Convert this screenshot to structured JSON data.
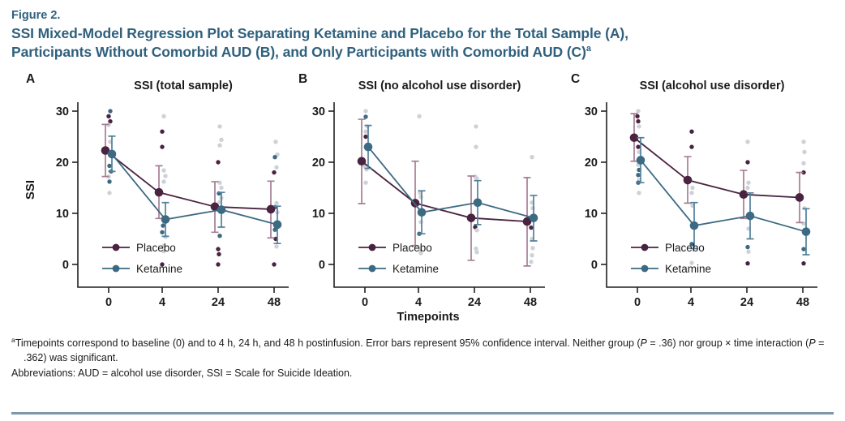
{
  "header": {
    "figure_label": "Figure 2.",
    "title_lines": [
      [
        {
          "t": "SSI Mixed-Model Regression Plot Separating Ketamine and Placebo for the Total Sample (A),"
        }
      ],
      [
        {
          "t": "Participants Without Comorbid AUD (B), and Only Participants with Comorbid AUD (C)"
        },
        {
          "t": "a",
          "sup": true
        }
      ]
    ]
  },
  "colors": {
    "title": "#2f607d",
    "placebo": "#4a2340",
    "placebo_ci": "#a57e95",
    "ketamine": "#3c6a82",
    "ketamine_ci": "#53809a",
    "scatter_gray": "#cdd2d8",
    "axis": "#231f20",
    "text": "#1a1a1a",
    "rule": "#7e97a9"
  },
  "xaxis_label": "Timepoints",
  "chart_data": [
    {
      "type": "line",
      "panel_label": "A",
      "title": "SSI (total sample)",
      "ylabel": "SSI",
      "xlabel": "",
      "x_categories": [
        "0",
        "4",
        "24",
        "48"
      ],
      "y_ticks": [
        0,
        10,
        20,
        30
      ],
      "ylim": [
        -4.4,
        31.7
      ],
      "legend_position": "lower-left",
      "series": [
        {
          "name": "Placebo",
          "color_key": "placebo",
          "ci_color_key": "placebo_ci",
          "means": [
            22.3,
            14.1,
            11.3,
            10.8
          ],
          "ci_low": [
            17.2,
            9.0,
            6.3,
            5.2
          ],
          "ci_high": [
            27.4,
            19.3,
            16.2,
            16.3
          ]
        },
        {
          "name": "Ketamine",
          "color_key": "ketamine",
          "ci_color_key": "ketamine_ci",
          "means": [
            21.6,
            8.8,
            10.7,
            7.8
          ],
          "ci_low": [
            18.2,
            5.5,
            7.3,
            4.1
          ],
          "ci_high": [
            25.1,
            12.1,
            14.1,
            11.4
          ]
        }
      ],
      "raw_points": [
        [
          0,
          30,
          "k",
          2
        ],
        [
          0,
          29,
          "p",
          0
        ],
        [
          0,
          28,
          "p",
          2
        ],
        [
          0,
          27.3,
          "g",
          0
        ],
        [
          0,
          24,
          "g",
          2
        ],
        [
          0,
          19.3,
          "k",
          1
        ],
        [
          0,
          18.2,
          "k",
          3
        ],
        [
          0,
          17.2,
          "g",
          0
        ],
        [
          0,
          16.2,
          "k",
          1
        ],
        [
          0,
          14,
          "g",
          1
        ],
        [
          1,
          29,
          "g",
          2
        ],
        [
          1,
          26,
          "p",
          0
        ],
        [
          1,
          23,
          "p",
          0
        ],
        [
          1,
          18.4,
          "g",
          2
        ],
        [
          1,
          17.3,
          "g",
          4
        ],
        [
          1,
          16.2,
          "g",
          2
        ],
        [
          1,
          8.6,
          "g",
          3
        ],
        [
          1,
          7.6,
          "k",
          1
        ],
        [
          1,
          6.3,
          "k",
          0
        ],
        [
          1,
          5.4,
          "g",
          4
        ],
        [
          1,
          3.6,
          "g",
          2
        ],
        [
          1,
          2.6,
          "g",
          2
        ],
        [
          1,
          0,
          "p",
          0
        ],
        [
          2,
          27,
          "g",
          2
        ],
        [
          2,
          24.4,
          "g",
          4
        ],
        [
          2,
          23.3,
          "g",
          2
        ],
        [
          2,
          20,
          "p",
          0
        ],
        [
          2,
          16,
          "g",
          2
        ],
        [
          2,
          15,
          "g",
          4
        ],
        [
          2,
          13.9,
          "k",
          1
        ],
        [
          2,
          13,
          "g",
          4
        ],
        [
          2,
          12.2,
          "g",
          2
        ],
        [
          2,
          5.6,
          "k",
          2
        ],
        [
          2,
          3,
          "p",
          0
        ],
        [
          2,
          2,
          "p",
          1
        ],
        [
          2,
          0,
          "p",
          0
        ],
        [
          3,
          24,
          "g",
          2
        ],
        [
          3,
          21.5,
          "g",
          4
        ],
        [
          3,
          21,
          "k",
          1
        ],
        [
          3,
          19,
          "g",
          3
        ],
        [
          3,
          18,
          "p",
          0
        ],
        [
          3,
          12,
          "g",
          3
        ],
        [
          3,
          11.2,
          "k",
          1
        ],
        [
          3,
          10.2,
          "g",
          4
        ],
        [
          3,
          6.8,
          "k",
          1
        ],
        [
          3,
          5,
          "p",
          2
        ],
        [
          3,
          3.5,
          "g",
          3
        ],
        [
          3,
          0,
          "p",
          0
        ]
      ]
    },
    {
      "type": "line",
      "panel_label": "B",
      "title": "SSI (no alcohol use disorder)",
      "ylabel": "",
      "xlabel": "",
      "x_categories": [
        "0",
        "4",
        "24",
        "48"
      ],
      "y_ticks": [
        0,
        10,
        20,
        30
      ],
      "ylim": [
        -4.4,
        31.7
      ],
      "legend_position": "lower-left",
      "series": [
        {
          "name": "Placebo",
          "color_key": "placebo",
          "ci_color_key": "placebo_ci",
          "means": [
            20.2,
            12.0,
            9.1,
            8.4
          ],
          "ci_low": [
            11.9,
            3.7,
            0.8,
            -0.3
          ],
          "ci_high": [
            28.4,
            20.2,
            17.3,
            17.0
          ]
        },
        {
          "name": "Ketamine",
          "color_key": "ketamine",
          "ci_color_key": "ketamine_ci",
          "means": [
            23.0,
            10.2,
            12.1,
            9.1
          ],
          "ci_low": [
            18.8,
            6.0,
            7.8,
            4.6
          ],
          "ci_high": [
            27.2,
            14.4,
            16.4,
            13.5
          ]
        }
      ],
      "raw_points": [
        [
          0,
          30,
          "g",
          1
        ],
        [
          0,
          28.9,
          "k",
          1
        ],
        [
          0,
          27,
          "g",
          3
        ],
        [
          0,
          26,
          "g",
          1
        ],
        [
          0,
          25,
          "p",
          1
        ],
        [
          0,
          19.2,
          "g",
          0
        ],
        [
          0,
          18.6,
          "g",
          2
        ],
        [
          0,
          16,
          "g",
          1
        ],
        [
          1,
          29,
          "g",
          1
        ],
        [
          1,
          14,
          "g",
          2
        ],
        [
          1,
          13.2,
          "g",
          3
        ],
        [
          1,
          8.3,
          "g",
          3
        ],
        [
          1,
          6,
          "k",
          1
        ],
        [
          1,
          3,
          "g",
          2
        ],
        [
          1,
          2.2,
          "g",
          3
        ],
        [
          2,
          27,
          "g",
          2
        ],
        [
          2,
          23,
          "g",
          2
        ],
        [
          2,
          17.2,
          "g",
          1
        ],
        [
          2,
          16.8,
          "g",
          3
        ],
        [
          2,
          7.3,
          "p",
          1
        ],
        [
          2,
          6.7,
          "g",
          3
        ],
        [
          2,
          3.1,
          "g",
          2
        ],
        [
          2,
          2.4,
          "g",
          3
        ],
        [
          3,
          21,
          "g",
          2
        ],
        [
          3,
          12.1,
          "g",
          2
        ],
        [
          3,
          11,
          "g",
          3
        ],
        [
          3,
          7.2,
          "p",
          1
        ],
        [
          3,
          5,
          "g",
          2
        ],
        [
          3,
          3.2,
          "g",
          3
        ],
        [
          3,
          1.8,
          "g",
          2
        ],
        [
          3,
          0.5,
          "g",
          1
        ]
      ]
    },
    {
      "type": "line",
      "panel_label": "C",
      "title": "SSI (alcohol use disorder)",
      "ylabel": "",
      "xlabel": "",
      "x_categories": [
        "0",
        "4",
        "24",
        "48"
      ],
      "y_ticks": [
        0,
        10,
        20,
        30
      ],
      "ylim": [
        -4.4,
        31.7
      ],
      "legend_position": "lower-left",
      "series": [
        {
          "name": "Placebo",
          "color_key": "placebo",
          "ci_color_key": "placebo_ci",
          "means": [
            24.8,
            16.5,
            13.7,
            13.1
          ],
          "ci_low": [
            20.2,
            12.0,
            9.0,
            8.2
          ],
          "ci_high": [
            29.5,
            21.1,
            18.4,
            18.0
          ]
        },
        {
          "name": "Ketamine",
          "color_key": "ketamine",
          "ci_color_key": "ketamine_ci",
          "means": [
            20.4,
            7.6,
            9.5,
            6.4
          ],
          "ci_low": [
            16.0,
            3.1,
            5.0,
            1.9
          ],
          "ci_high": [
            24.8,
            12.1,
            14.0,
            10.9
          ]
        }
      ],
      "raw_points": [
        [
          0,
          30,
          "g",
          1
        ],
        [
          0,
          29,
          "p",
          0
        ],
        [
          0,
          28,
          "p",
          1
        ],
        [
          0,
          27,
          "g",
          2
        ],
        [
          0,
          23,
          "p",
          1
        ],
        [
          0,
          22,
          "g",
          2
        ],
        [
          0,
          19.5,
          "g",
          1
        ],
        [
          0,
          18.5,
          "k",
          2
        ],
        [
          0,
          17.5,
          "k",
          1
        ],
        [
          0,
          16.5,
          "g",
          2
        ],
        [
          0,
          16,
          "k",
          1
        ],
        [
          0,
          14,
          "g",
          2
        ],
        [
          1,
          26,
          "p",
          1
        ],
        [
          1,
          23,
          "p",
          1
        ],
        [
          1,
          15,
          "g",
          2
        ],
        [
          1,
          14,
          "g",
          1
        ],
        [
          1,
          11.5,
          "g",
          2
        ],
        [
          1,
          4,
          "k",
          1
        ],
        [
          1,
          0.3,
          "g",
          1
        ],
        [
          2,
          24,
          "g",
          1
        ],
        [
          2,
          20,
          "p",
          1
        ],
        [
          2,
          16,
          "g",
          2
        ],
        [
          2,
          15,
          "g",
          1
        ],
        [
          2,
          7,
          "g",
          2
        ],
        [
          2,
          3.4,
          "k",
          1
        ],
        [
          2,
          2.5,
          "g",
          2
        ],
        [
          2,
          0.2,
          "p",
          1
        ],
        [
          3,
          24,
          "g",
          1
        ],
        [
          3,
          22,
          "g",
          2
        ],
        [
          3,
          19.8,
          "g",
          1
        ],
        [
          3,
          18,
          "p",
          1
        ],
        [
          3,
          11,
          "g",
          2
        ],
        [
          3,
          8,
          "g",
          1
        ],
        [
          3,
          3,
          "k",
          1
        ],
        [
          3,
          0.2,
          "p",
          1
        ]
      ]
    }
  ],
  "footnote": {
    "lines": [
      {
        "hang": true,
        "runs": [
          {
            "t": "a",
            "sup": true
          },
          {
            "t": "Timepoints correspond to baseline (0) and to 4 h, 24 h, and 48 h postinfusion. Error bars represent 95% confidence interval. Neither group ("
          },
          {
            "t": "P",
            "italic": true
          },
          {
            "t": " = .36) nor group × time interaction ("
          },
          {
            "t": "P",
            "italic": true
          },
          {
            "t": " = .362) was significant."
          }
        ]
      },
      {
        "hang": false,
        "runs": [
          {
            "t": "Abbreviations: AUD = alcohol use disorder, SSI = Scale for Suicide Ideation."
          }
        ]
      }
    ]
  }
}
